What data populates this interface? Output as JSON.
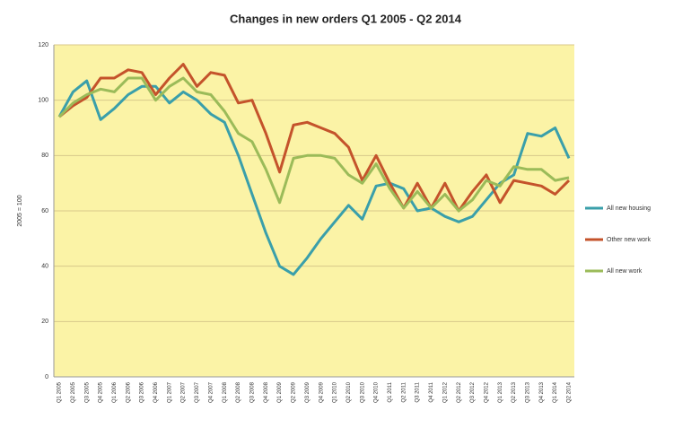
{
  "chart_data": {
    "type": "line",
    "title": "Changes in new orders Q1 2005 - Q2 2014",
    "y_label": "2005 = 100",
    "categories": [
      "Q1 2005",
      "Q2 2005",
      "Q3 2005",
      "Q4 2005",
      "Q1 2006",
      "Q2 2006",
      "Q3 2006",
      "Q4 2006",
      "Q1 2007",
      "Q2 2007",
      "Q3 2007",
      "Q4 2007",
      "Q1 2008",
      "Q2 2008",
      "Q3 2008",
      "Q4 2008",
      "Q1 2009",
      "Q2 2009",
      "Q3 2009",
      "Q4 2009",
      "Q1 2010",
      "Q2 2010",
      "Q3 2010",
      "Q4 2010",
      "Q1 2011",
      "Q2 2011",
      "Q3 2011",
      "Q4 2011",
      "Q1 2012",
      "Q2 2012",
      "Q3 2012",
      "Q4 2012",
      "Q1 2013",
      "Q2 2013",
      "Q3 2013",
      "Q4 2013",
      "Q1 2014",
      "Q2 2014"
    ],
    "series": [
      {
        "name": "All new housing",
        "color": "#3a9faa",
        "values": [
          94,
          103,
          107,
          93,
          97,
          102,
          105,
          105,
          99,
          103,
          100,
          95,
          92,
          80,
          66,
          52,
          40,
          37,
          43,
          50,
          56,
          62,
          57,
          69,
          70,
          68,
          60,
          61,
          58,
          56,
          58,
          64,
          70,
          73,
          88,
          87,
          90,
          79
        ]
      },
      {
        "name": "Other new work",
        "color": "#c4532b",
        "values": [
          94,
          98,
          101,
          108,
          108,
          111,
          110,
          102,
          108,
          113,
          105,
          110,
          109,
          99,
          100,
          88,
          74,
          91,
          92,
          90,
          88,
          83,
          71,
          80,
          70,
          61,
          70,
          61,
          70,
          60,
          67,
          73,
          63,
          71,
          70,
          69,
          66,
          71
        ]
      },
      {
        "name": "All new work",
        "color": "#9bbb59",
        "values": [
          94,
          99,
          102,
          104,
          103,
          108,
          108,
          100,
          105,
          108,
          103,
          102,
          96,
          88,
          85,
          75,
          63,
          79,
          80,
          80,
          79,
          73,
          70,
          77,
          68,
          61,
          67,
          61,
          66,
          60,
          64,
          71,
          69,
          76,
          75,
          75,
          71,
          72
        ]
      }
    ],
    "ylim": [
      0,
      120
    ],
    "yticks": [
      0,
      20,
      40,
      60,
      80,
      100,
      120
    ],
    "grid": true,
    "legend": "right"
  }
}
